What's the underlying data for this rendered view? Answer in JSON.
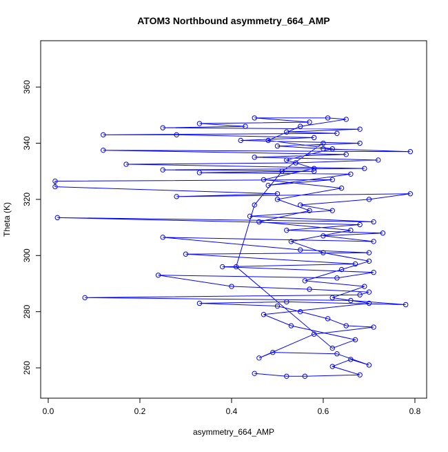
{
  "chart_data": {
    "type": "line",
    "title": "ATOM3 Northbound asymmetry_664_AMP",
    "x_label": "asymmetry_664_AMP",
    "y_label": "Theta (K)",
    "series": [
      {
        "color": "#0000ff",
        "x": [
          0.45,
          0.52,
          0.56,
          0.68,
          0.62,
          0.66,
          0.7,
          0.63,
          0.49,
          0.46,
          0.58,
          0.71,
          0.65,
          0.61,
          0.55,
          0.5,
          0.33,
          0.52,
          0.78,
          0.66,
          0.08,
          0.68,
          0.7,
          0.57,
          0.4,
          0.24,
          0.63,
          0.71,
          0.38,
          0.67,
          0.3,
          0.7,
          0.55,
          0.25,
          0.71,
          0.6,
          0.73,
          0.52,
          0.68,
          0.02,
          0.71,
          0.44,
          0.62,
          0.55,
          0.7,
          0.79,
          0.28,
          0.5,
          0.015,
          0.015,
          0.62,
          0.48,
          0.66,
          0.33,
          0.58,
          0.25,
          0.69,
          0.17,
          0.54,
          0.72,
          0.45,
          0.65,
          0.12,
          0.79,
          0.6,
          0.5,
          0.68,
          0.42,
          0.58,
          0.28,
          0.12,
          0.63,
          0.52,
          0.68,
          0.25,
          0.43,
          0.33,
          0.57,
          0.45,
          0.61,
          0.65,
          0.55,
          0.48,
          0.62,
          0.52,
          0.58,
          0.47,
          0.64,
          0.5,
          0.57,
          0.46,
          0.66,
          0.53,
          0.6,
          0.7,
          0.64,
          0.56,
          0.69,
          0.62,
          0.7,
          0.47,
          0.53,
          0.67,
          0.62,
          0.41,
          0.45,
          0.51,
          0.6
        ],
        "values": [
          258,
          257,
          257,
          257.5,
          260.5,
          263,
          261,
          265,
          265.5,
          263.5,
          272,
          274.5,
          275,
          277.5,
          280,
          282,
          283,
          283.5,
          282.5,
          284,
          285,
          286,
          287,
          288,
          289,
          293,
          292,
          294,
          296,
          297,
          300.5,
          301,
          302,
          306.5,
          305,
          307,
          308,
          309,
          311,
          313.5,
          312,
          314,
          316,
          318,
          320,
          322,
          321,
          322,
          324.5,
          326.5,
          327,
          325,
          329,
          329.5,
          330,
          330.5,
          331,
          332.5,
          333,
          334,
          335,
          336,
          337.5,
          337,
          338,
          339,
          340,
          341,
          342,
          343,
          343,
          343.5,
          344,
          345,
          345.5,
          346,
          347,
          347.5,
          349,
          349,
          348.5,
          346,
          341,
          338,
          334,
          331,
          327,
          324,
          320,
          316,
          312,
          309,
          305,
          301,
          298,
          295,
          291,
          289,
          285,
          283,
          279,
          275,
          270,
          267,
          296,
          318,
          330,
          340
        ]
      }
    ],
    "xlim": [
      -0.0165,
      0.8256
    ],
    "ylim": [
      249.2,
      376.5
    ],
    "xticks": [
      {
        "value": 0,
        "label": "0.0"
      },
      0.2,
      0.4,
      0.6,
      0.8
    ],
    "yticks": [
      260,
      280,
      300,
      320,
      340,
      360
    ]
  }
}
